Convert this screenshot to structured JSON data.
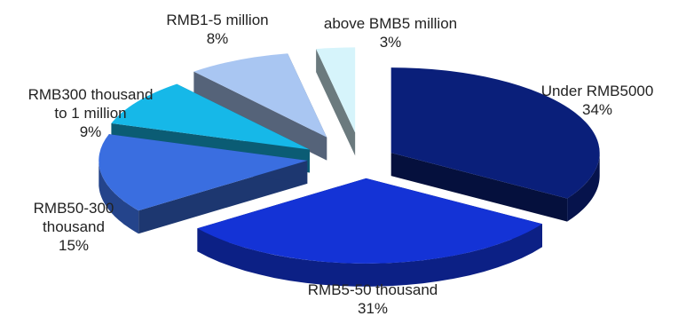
{
  "chart_data": {
    "type": "pie",
    "style": "3d-exploded",
    "slices": [
      {
        "label": "Under RMB5000",
        "label_lines": [
          "Under RMB5000"
        ],
        "value": 34,
        "pct": "34%",
        "color": "#0a1f7a"
      },
      {
        "label": "RMB5-50 thousand",
        "label_lines": [
          "RMB5-50 thousand"
        ],
        "value": 31,
        "pct": "31%",
        "color": "#1433d6"
      },
      {
        "label": "RMB50-300 thousand",
        "label_lines": [
          "RMB50-300",
          "thousand"
        ],
        "value": 15,
        "pct": "15%",
        "color": "#3a6ee0"
      },
      {
        "label": "RMB300 thousand to 1 million",
        "label_lines": [
          "RMB300 thousand",
          "to 1 million"
        ],
        "value": 9,
        "pct": "9%",
        "color": "#16b8e8"
      },
      {
        "label": "RMB1-5 million",
        "label_lines": [
          "RMB1-5 million"
        ],
        "value": 8,
        "pct": "8%",
        "color": "#a9c6f2"
      },
      {
        "label": "above BMB5 million",
        "label_lines": [
          "above BMB5 million"
        ],
        "value": 3,
        "pct": "3%",
        "color": "#d6f4fb"
      }
    ]
  }
}
